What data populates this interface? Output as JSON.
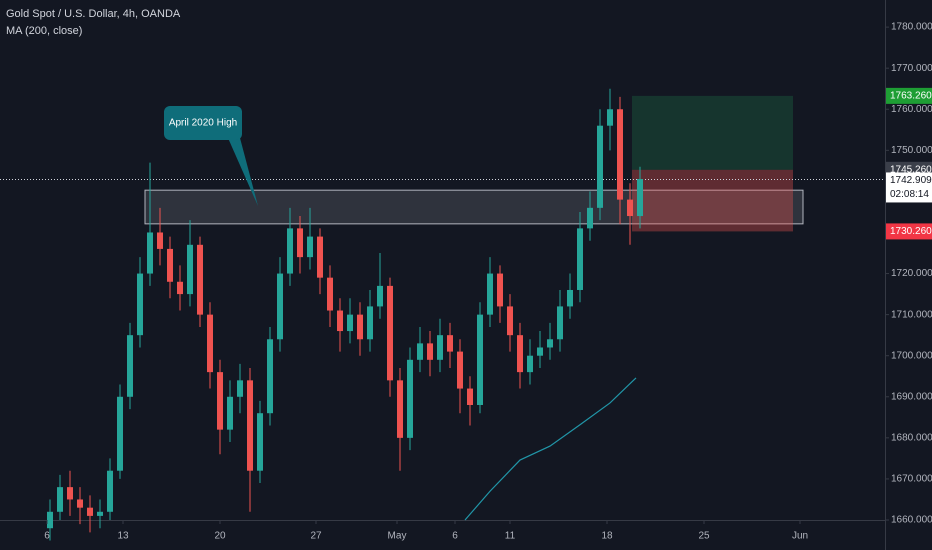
{
  "chart_data": {
    "type": "candlestick",
    "title": "Gold Spot / U.S. Dollar, 4h, OANDA",
    "subtitle": "MA (200, close)",
    "up_color": "#26a69a",
    "down_color": "#ef5350",
    "open": [
      1658,
      1662,
      1668,
      1665,
      1663,
      1661,
      1662,
      1672,
      1690,
      1705,
      1720,
      1730,
      1726,
      1718,
      1715,
      1727,
      1710,
      1696,
      1682,
      1690,
      1694,
      1672,
      1686,
      1704,
      1720,
      1731,
      1724,
      1729,
      1719,
      1711,
      1706,
      1710,
      1704,
      1712,
      1717,
      1694,
      1680,
      1699,
      1703,
      1699,
      1705,
      1701,
      1692,
      1688,
      1710,
      1720,
      1712,
      1705,
      1696,
      1700,
      1702,
      1704,
      1712,
      1716,
      1731,
      1736,
      1756,
      1760,
      1738,
      1734
    ],
    "high": [
      1665,
      1671,
      1672,
      1668,
      1666,
      1665,
      1675,
      1693,
      1708,
      1724,
      1747,
      1736,
      1729,
      1722,
      1733,
      1729,
      1713,
      1699,
      1694,
      1698,
      1697,
      1689,
      1707,
      1724,
      1736,
      1734,
      1736,
      1731,
      1722,
      1714,
      1714,
      1713,
      1716,
      1725,
      1719,
      1697,
      1702,
      1707,
      1706,
      1709,
      1708,
      1704,
      1695,
      1713,
      1724,
      1722,
      1715,
      1708,
      1704,
      1706,
      1708,
      1716,
      1720,
      1735,
      1740,
      1760,
      1765,
      1763,
      1742,
      1746
    ],
    "low": [
      1655,
      1660,
      1661,
      1659,
      1657,
      1658,
      1660,
      1670,
      1687,
      1702,
      1717,
      1722,
      1714,
      1711,
      1712,
      1707,
      1692,
      1676,
      1679,
      1686,
      1662,
      1669,
      1683,
      1701,
      1717,
      1720,
      1721,
      1715,
      1707,
      1701,
      1703,
      1700,
      1701,
      1709,
      1690,
      1672,
      1677,
      1696,
      1695,
      1696,
      1697,
      1686,
      1683,
      1686,
      1707,
      1708,
      1701,
      1692,
      1693,
      1697,
      1699,
      1701,
      1709,
      1713,
      1728,
      1733,
      1750,
      1732,
      1727,
      1731
    ],
    "close": [
      1662,
      1668,
      1665,
      1663,
      1661,
      1662,
      1672,
      1690,
      1705,
      1720,
      1730,
      1726,
      1718,
      1715,
      1727,
      1710,
      1696,
      1682,
      1690,
      1694,
      1672,
      1686,
      1704,
      1720,
      1731,
      1724,
      1729,
      1719,
      1711,
      1706,
      1710,
      1704,
      1712,
      1717,
      1694,
      1680,
      1699,
      1703,
      1699,
      1705,
      1701,
      1692,
      1688,
      1710,
      1720,
      1712,
      1705,
      1696,
      1700,
      1702,
      1704,
      1712,
      1716,
      1731,
      1736,
      1756,
      1760,
      1738,
      1734,
      1743
    ],
    "ma": {
      "name": "MA (200, close)",
      "color": "#2196a8",
      "x": [
        41.5,
        44,
        47,
        50,
        53,
        56,
        58.6
      ],
      "values": [
        1660,
        1667,
        1674.6,
        1678,
        1683.2,
        1688.5,
        1694.6
      ]
    },
    "xlim": [
      -5,
      83.5
    ],
    "xticks": [
      {
        "value": -0.3,
        "label": "6"
      },
      {
        "value": 7.3,
        "label": "13"
      },
      {
        "value": 17,
        "label": "20"
      },
      {
        "value": 26.6,
        "label": "27"
      },
      {
        "value": 34.7,
        "label": "May"
      },
      {
        "value": 40.5,
        "label": "6"
      },
      {
        "value": 46,
        "label": "11"
      },
      {
        "value": 55.7,
        "label": "18"
      },
      {
        "value": 65.4,
        "label": "25"
      },
      {
        "value": 75,
        "label": "Jun"
      }
    ],
    "ylim": [
      1660,
      1786.6
    ],
    "yticks": [
      {
        "value": 1780,
        "label": "1780.000"
      },
      {
        "value": 1770,
        "label": "1770.000"
      },
      {
        "value": 1760,
        "label": "1760.000"
      },
      {
        "value": 1750,
        "label": "1750.000"
      },
      {
        "value": 1720,
        "label": "1720.000"
      },
      {
        "value": 1710,
        "label": "1710.000"
      },
      {
        "value": 1700,
        "label": "1700.000"
      },
      {
        "value": 1690,
        "label": "1690.000"
      },
      {
        "value": 1680,
        "label": "1680.000"
      },
      {
        "value": 1670,
        "label": "1670.000"
      },
      {
        "value": 1660,
        "label": "1660.000"
      }
    ],
    "zone": {
      "x": [
        9.5,
        75.3
      ],
      "top": 1740.3,
      "bottom": 1732.1
    },
    "position": {
      "x": [
        58.2,
        74.3
      ],
      "target": {
        "value": 1763.26,
        "label": "1763.260"
      },
      "entry": {
        "value": 1745.26,
        "label": "1745.260"
      },
      "stop": {
        "value": 1730.26,
        "label": "1730.260"
      }
    },
    "last_price": {
      "value": 1742.909,
      "label": "1742.909"
    },
    "countdown": "02:08:14",
    "annotation": "April 2020 High"
  }
}
